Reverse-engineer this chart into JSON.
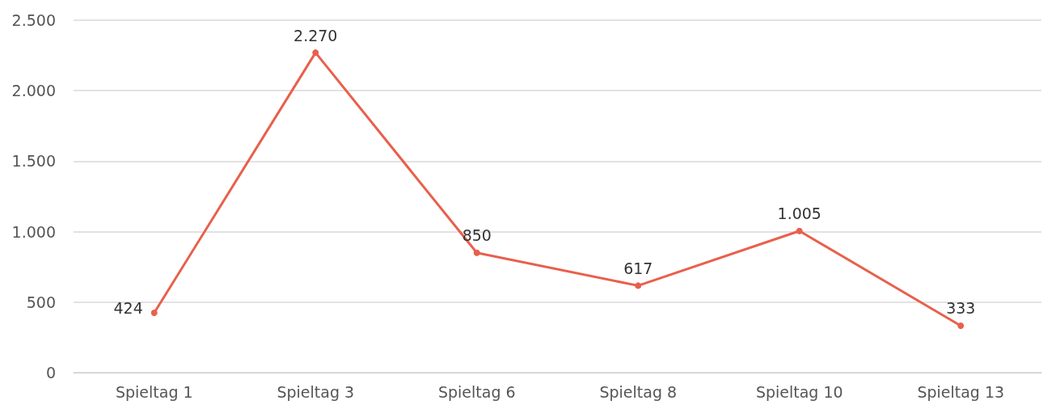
{
  "chart_data": {
    "type": "line",
    "categories": [
      "Spieltag 1",
      "Spieltag 3",
      "Spieltag 6",
      "Spieltag 8",
      "Spieltag 10",
      "Spieltag 13"
    ],
    "series": [
      {
        "color": "#e8604c",
        "values": [
          424,
          2270,
          850,
          617,
          1005,
          333
        ],
        "value_labels": [
          "424",
          "2.270",
          "850",
          "617",
          "1.005",
          "333"
        ]
      }
    ],
    "ylim": [
      0,
      2500
    ],
    "yticks": [
      0,
      500,
      {
        "value": 1000,
        "label": "1.000"
      },
      {
        "value": 1500,
        "label": "1.500"
      },
      {
        "value": 2000,
        "label": "2.000"
      },
      {
        "value": 2500,
        "label": "2.500"
      }
    ],
    "grid": "y",
    "marker": "circle",
    "line_style": "solid"
  }
}
